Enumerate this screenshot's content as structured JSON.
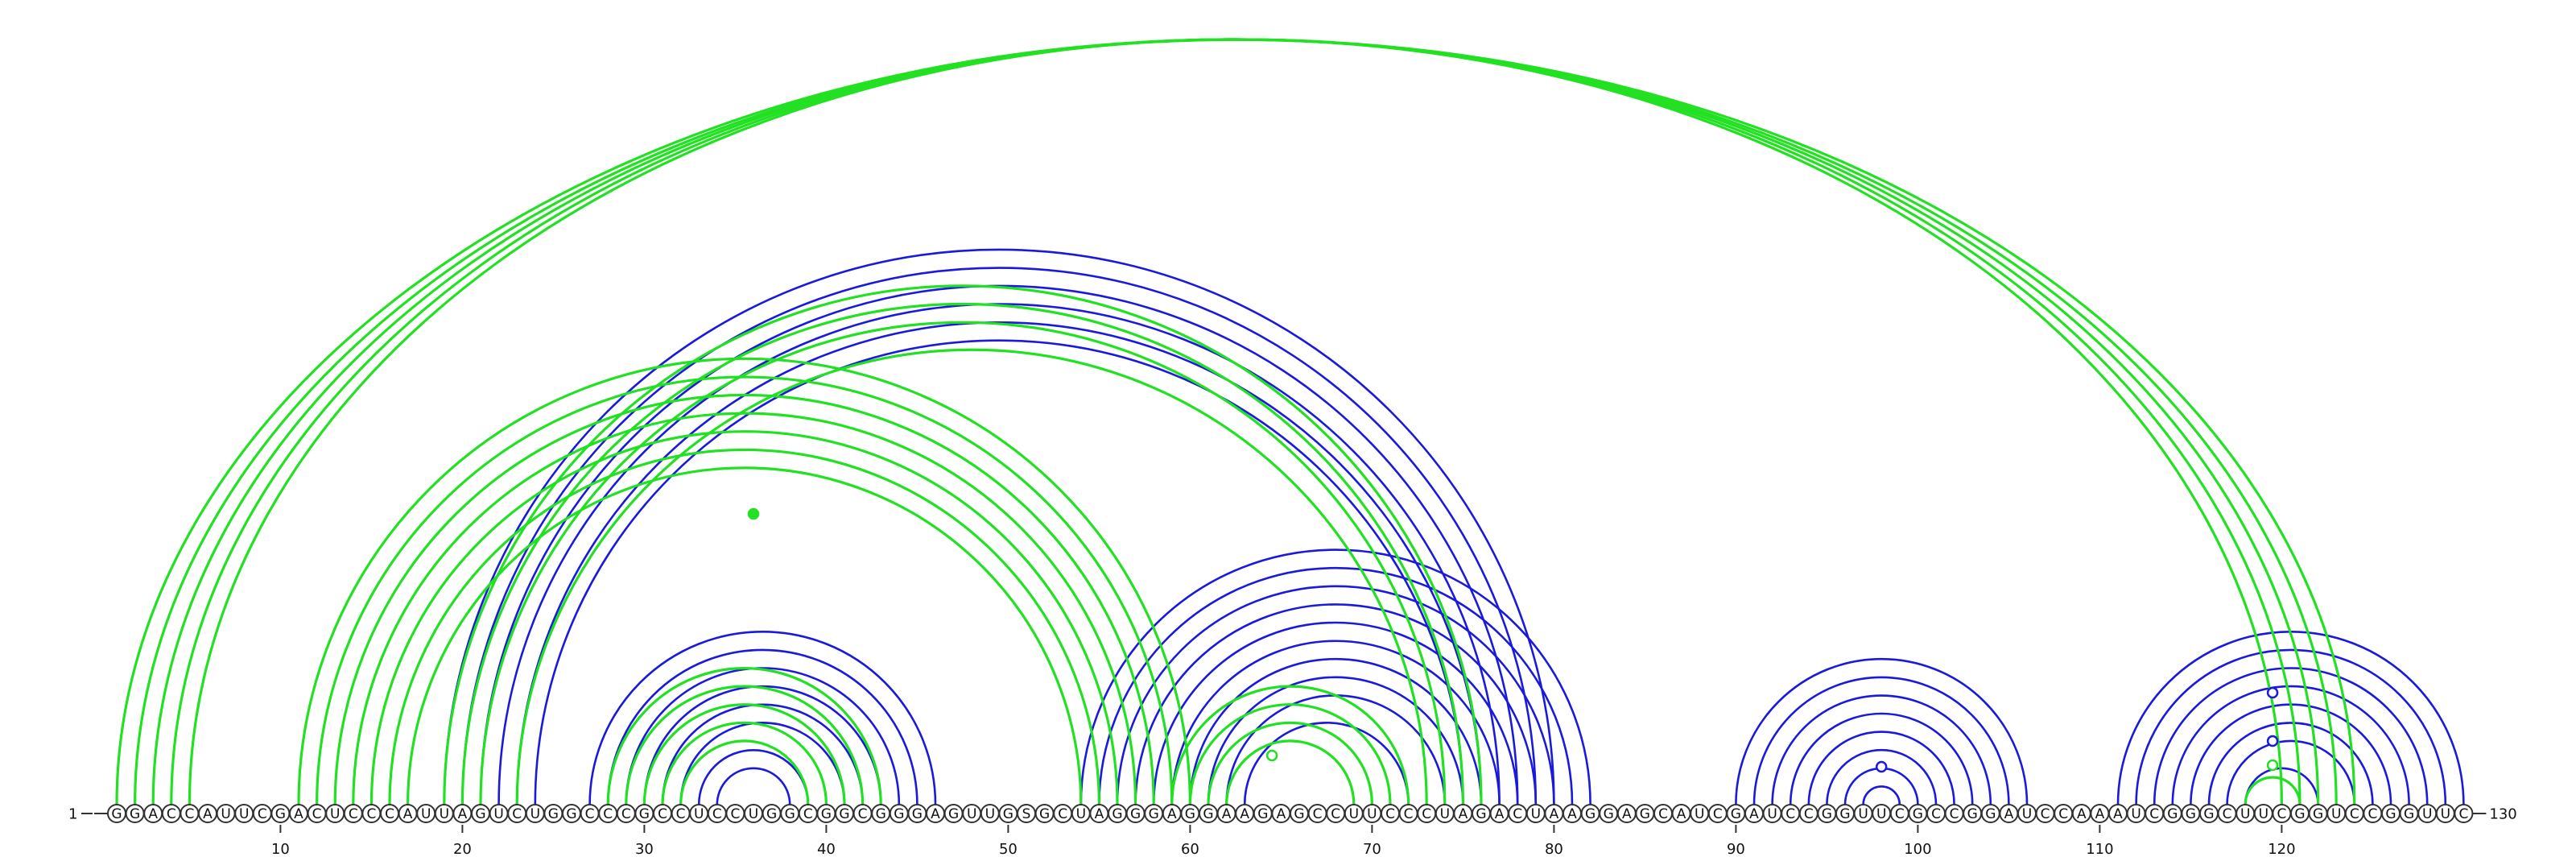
{
  "sequence": "GGACCAUUCGACUCCCAUUAGUCUGGCCCGCCUCCUGGCGGCGGGAGUUGSGCUAGGGAGGAAGAGCCUUCCCUAGACUAAGGAGCAUCGAUCCGGUUCGCCGGAUCCAAAUCGGGCUUCGGUCCGGUUC",
  "start_label": "1",
  "end_label": "130",
  "ticks": [
    {
      "pos": 10,
      "label": "10"
    },
    {
      "pos": 20,
      "label": "20"
    },
    {
      "pos": 30,
      "label": "30"
    },
    {
      "pos": 40,
      "label": "40"
    },
    {
      "pos": 50,
      "label": "50"
    },
    {
      "pos": 60,
      "label": "60"
    },
    {
      "pos": 70,
      "label": "70"
    },
    {
      "pos": 80,
      "label": "80"
    },
    {
      "pos": 90,
      "label": "90"
    },
    {
      "pos": 100,
      "label": "100"
    },
    {
      "pos": 110,
      "label": "110"
    },
    {
      "pos": 120,
      "label": "120"
    }
  ],
  "colors": {
    "blue": "#1a1adc",
    "green": "#22e022"
  },
  "arcs": {
    "blue": [
      [
        19,
        80
      ],
      [
        20,
        79
      ],
      [
        21,
        78
      ],
      [
        22,
        77
      ],
      [
        23,
        76
      ],
      [
        24,
        75
      ],
      [
        27,
        46
      ],
      [
        28,
        45
      ],
      [
        29,
        44
      ],
      [
        30,
        43
      ],
      [
        31,
        42
      ],
      [
        32,
        41
      ],
      [
        33,
        39
      ],
      [
        34,
        38
      ],
      [
        54,
        82
      ],
      [
        55,
        81
      ],
      [
        56,
        80
      ],
      [
        57,
        79
      ],
      [
        58,
        78
      ],
      [
        59,
        77
      ],
      [
        60,
        76
      ],
      [
        61,
        75
      ],
      [
        62,
        74
      ],
      [
        63,
        72
      ],
      [
        90,
        106
      ],
      [
        91,
        105
      ],
      [
        92,
        104
      ],
      [
        93,
        103
      ],
      [
        94,
        102
      ],
      [
        95,
        101
      ],
      [
        96,
        100
      ],
      [
        97,
        99
      ],
      [
        111,
        130
      ],
      [
        112,
        129
      ],
      [
        113,
        128
      ],
      [
        114,
        127
      ],
      [
        115,
        126
      ],
      [
        116,
        125
      ],
      [
        117,
        124
      ],
      [
        118,
        122
      ]
    ],
    "green": [
      [
        1,
        124
      ],
      [
        2,
        123
      ],
      [
        3,
        122
      ],
      [
        4,
        121
      ],
      [
        5,
        120
      ],
      [
        11,
        60
      ],
      [
        12,
        59
      ],
      [
        13,
        58
      ],
      [
        14,
        57
      ],
      [
        15,
        56
      ],
      [
        16,
        55
      ],
      [
        17,
        54
      ],
      [
        19,
        76
      ],
      [
        20,
        75
      ],
      [
        21,
        74
      ],
      [
        23,
        73
      ],
      [
        28,
        43
      ],
      [
        29,
        42
      ],
      [
        30,
        41
      ],
      [
        31,
        40
      ],
      [
        32,
        39
      ],
      [
        59,
        72
      ],
      [
        60,
        71
      ],
      [
        61,
        70
      ],
      [
        62,
        69
      ],
      [
        118,
        121
      ]
    ]
  },
  "markers": [
    {
      "pos": 36,
      "color": "green",
      "filled": true
    },
    {
      "pos": 64.5,
      "color": "green",
      "filled": false
    },
    {
      "pos": 98,
      "color": "blue",
      "filled": false
    },
    {
      "pos": 119.5,
      "color": "blue",
      "filled": false
    },
    {
      "pos": 119.5,
      "color": "blue",
      "filled": false
    },
    {
      "pos": 119.5,
      "color": "green",
      "filled": false
    }
  ]
}
